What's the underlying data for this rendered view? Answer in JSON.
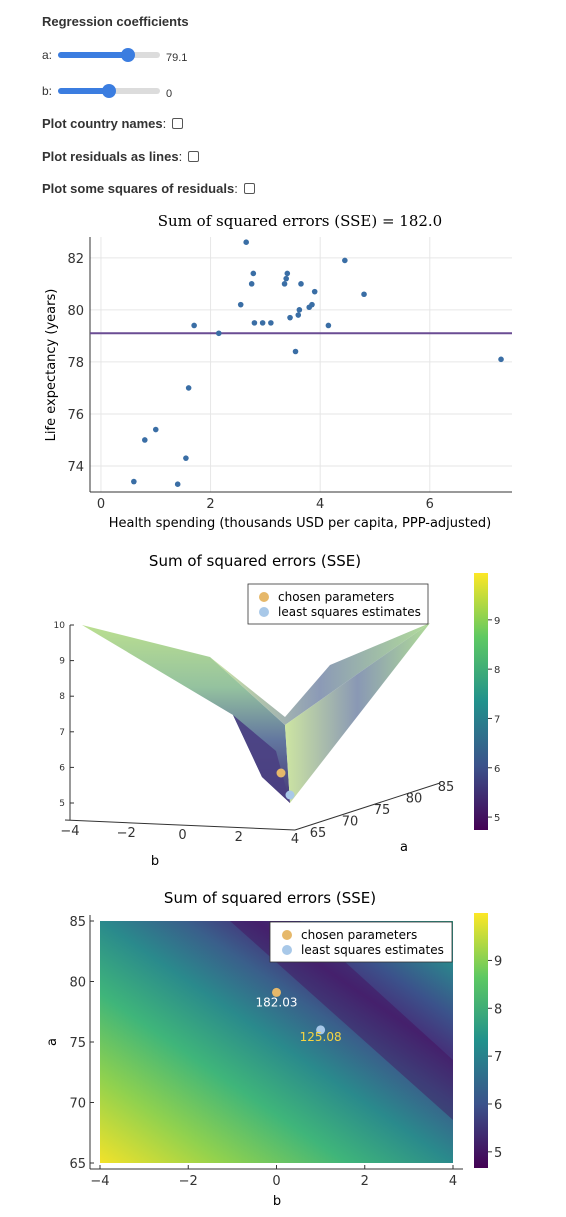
{
  "controls": {
    "title": "Regression coefficients",
    "slider_a": {
      "label": "a:",
      "value": "79.1",
      "fraction": 0.69
    },
    "slider_b": {
      "label": "b:",
      "value": "0",
      "fraction": 0.5
    },
    "checkboxes": [
      {
        "label": "Plot country names",
        "checked": false
      },
      {
        "label": "Plot residuals as lines",
        "checked": false
      },
      {
        "label": "Plot some squares of residuals",
        "checked": false
      }
    ]
  },
  "chart_data": [
    {
      "type": "scatter",
      "title": "Sum of squared errors (SSE) = 182.0",
      "xlabel": "Health spending (thousands USD per capita, PPP-adjusted)",
      "ylabel": "Life expectancy (years)",
      "xlim": [
        -0.2,
        7.5
      ],
      "ylim": [
        73.0,
        82.8
      ],
      "xticks": [
        0,
        2,
        4,
        6
      ],
      "yticks": [
        74,
        76,
        78,
        80,
        82
      ],
      "grid": true,
      "colors": {
        "points": "#3a6ea5",
        "line": "#6a4c93"
      },
      "points": [
        [
          0.6,
          73.4
        ],
        [
          0.8,
          75.0
        ],
        [
          1.0,
          75.4
        ],
        [
          1.4,
          73.3
        ],
        [
          1.55,
          74.3
        ],
        [
          1.6,
          77.0
        ],
        [
          1.7,
          79.4
        ],
        [
          2.15,
          79.1
        ],
        [
          2.55,
          80.2
        ],
        [
          2.65,
          82.6
        ],
        [
          2.75,
          81.0
        ],
        [
          2.78,
          81.4
        ],
        [
          2.8,
          79.5
        ],
        [
          2.95,
          79.5
        ],
        [
          3.1,
          79.5
        ],
        [
          3.35,
          81.0
        ],
        [
          3.38,
          81.2
        ],
        [
          3.4,
          81.4
        ],
        [
          3.45,
          79.7
        ],
        [
          3.55,
          78.4
        ],
        [
          3.6,
          79.8
        ],
        [
          3.62,
          80.0
        ],
        [
          3.65,
          81.0
        ],
        [
          3.8,
          80.1
        ],
        [
          3.85,
          80.2
        ],
        [
          3.9,
          80.7
        ],
        [
          4.15,
          79.4
        ],
        [
          4.45,
          81.9
        ],
        [
          4.8,
          80.6
        ],
        [
          7.3,
          78.1
        ]
      ],
      "line": {
        "a": 79.1,
        "b": 0
      }
    },
    {
      "type": "surface",
      "title": "Sum of squared errors (SSE)",
      "xlabel": "b",
      "ylabel": "a",
      "xticks": [
        -4,
        -2,
        0,
        2,
        4
      ],
      "yticks": [
        65,
        70,
        75,
        80,
        85
      ],
      "zticks": [
        5,
        6,
        7,
        8,
        9,
        10
      ],
      "colorbar_ticks": [
        5,
        6,
        7,
        8,
        9
      ],
      "legend": [
        {
          "name": "chosen parameters",
          "color": "#e6b86a"
        },
        {
          "name": "least squares estimates",
          "color": "#a8c8e8"
        }
      ],
      "legend_position": "top-right"
    },
    {
      "type": "heatmap",
      "title": "Sum of squared errors (SSE)",
      "xlabel": "b",
      "ylabel": "a",
      "xlim": [
        -4,
        4
      ],
      "ylim": [
        65,
        85
      ],
      "xticks": [
        -4,
        -2,
        0,
        2,
        4
      ],
      "yticks": [
        65,
        70,
        75,
        80,
        85
      ],
      "colorbar_ticks": [
        5,
        6,
        7,
        8,
        9
      ],
      "legend": [
        {
          "name": "chosen parameters",
          "color": "#e6b86a"
        },
        {
          "name": "least squares estimates",
          "color": "#a8c8e8"
        }
      ],
      "legend_position": "top-right",
      "markers": [
        {
          "b": 0.0,
          "a": 79.1,
          "label": "182.03",
          "color": "#e6b86a",
          "label_color": "#ffffff"
        },
        {
          "b": 1.0,
          "a": 76.0,
          "label": "125.08",
          "color": "#a8c8e8",
          "label_color": "#f5d442"
        }
      ]
    }
  ]
}
